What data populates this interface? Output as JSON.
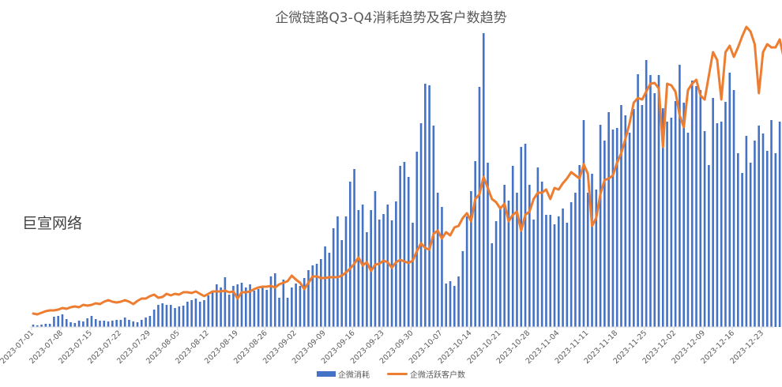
{
  "title": "企微链路Q3-Q4消耗趋势及客户数趋势",
  "watermark": "巨宣网络",
  "legend": {
    "bar_label": "企微消耗",
    "line_label": "企微活跃客户数"
  },
  "colors": {
    "bar": "#4472c4",
    "line": "#ed7d31",
    "axis": "#d9d9d9",
    "text": "#595959"
  },
  "chart_data": {
    "type": "bar+line",
    "title": "企微链路Q3-Q4消耗趋势及客户数趋势",
    "xlabel": "",
    "ylabel": "",
    "start_date": "2023-07-01",
    "x_tick_labels": [
      "2023-07-01",
      "2023-07-08",
      "2023-07-15",
      "2023-07-22",
      "2023-07-29",
      "2023-08-05",
      "2023-08-12",
      "2023-08-19",
      "2023-08-26",
      "2023-09-02",
      "2023-09-09",
      "2023-09-16",
      "2023-09-23",
      "2023-09-30",
      "2023-10-07",
      "2023-10-14",
      "2023-10-21",
      "2023-10-28",
      "2023-11-04",
      "2023-11-11",
      "2023-11-18",
      "2023-11-25",
      "2023-12-02",
      "2023-12-09",
      "2023-12-16",
      "2023-12-23"
    ],
    "legend_position": "bottom",
    "grid": false,
    "note": "No y-axis shown; values are relative heights (px above baseline, scale 0-372)",
    "series": [
      {
        "name": "企微消耗",
        "type": "bar",
        "values": [
          3,
          2,
          3,
          4,
          4,
          13,
          14,
          16,
          10,
          6,
          5,
          8,
          7,
          11,
          14,
          10,
          8,
          8,
          7,
          8,
          9,
          9,
          12,
          9,
          7,
          6,
          9,
          12,
          14,
          22,
          28,
          30,
          28,
          28,
          24,
          26,
          27,
          32,
          34,
          36,
          32,
          34,
          40,
          46,
          54,
          50,
          63,
          41,
          52,
          54,
          56,
          50,
          54,
          46,
          48,
          52,
          47,
          64,
          68,
          37,
          60,
          37,
          50,
          55,
          52,
          62,
          72,
          78,
          80,
          86,
          102,
          94,
          125,
          140,
          110,
          140,
          184,
          200,
          148,
          155,
          120,
          148,
          172,
          136,
          143,
          155,
          135,
          159,
          204,
          209,
          190,
          132,
          222,
          258,
          308,
          306,
          255,
          170,
          152,
          55,
          58,
          52,
          64,
          96,
          140,
          172,
          210,
          304,
          404,
          208,
          106,
          134,
          150,
          180,
          160,
          204,
          170,
          228,
          232,
          180,
          136,
          202,
          184,
          142,
          142,
          130,
          140,
          150,
          132,
          158,
          170,
          205,
          262,
          170,
          194,
          174,
          256,
          236,
          272,
          250,
          252,
          281,
          268,
          246,
          276,
          320,
          281,
          338,
          319,
          296,
          319,
          277,
          260,
          265,
          286,
          332,
          284,
          246,
          312,
          305,
          300,
          248,
          205,
          290,
          258,
          260,
          285,
          322,
          300,
          220,
          195,
          242,
          208,
          236,
          255,
          245,
          223,
          262,
          220,
          260,
          240,
          247,
          237,
          253,
          262,
          258,
          232,
          270
        ]
      },
      {
        "name": "企微活跃客户数",
        "type": "line",
        "values": [
          9,
          8,
          10,
          12,
          13,
          13,
          14,
          16,
          15,
          17,
          18,
          17,
          20,
          19,
          20,
          22,
          21,
          24,
          26,
          24,
          23,
          24,
          26,
          24,
          21,
          25,
          28,
          28,
          31,
          33,
          29,
          30,
          34,
          32,
          34,
          33,
          36,
          36,
          35,
          37,
          34,
          31,
          34,
          37,
          37,
          37,
          38,
          36,
          37,
          28,
          36,
          36,
          37,
          40,
          42,
          43,
          43,
          44,
          42,
          46,
          48,
          50,
          57,
          52,
          48,
          40,
          48,
          56,
          56,
          54,
          54,
          55,
          55,
          55,
          57,
          61,
          66,
          72,
          80,
          70,
          74,
          63,
          71,
          72,
          76,
          74,
          67,
          74,
          77,
          75,
          73,
          76,
          88,
          98,
          92,
          90,
          110,
          114,
          104,
          112,
          108,
          118,
          120,
          130,
          136,
          126,
          154,
          160,
          182,
          168,
          154,
          150,
          142,
          148,
          126,
          134,
          138,
          114,
          134,
          138,
          154,
          162,
          162,
          166,
          154,
          168,
          166,
          174,
          180,
          188,
          184,
          180,
          198,
          186,
          120,
          130,
          160,
          178,
          180,
          184,
          200,
          212,
          230,
          250,
          276,
          282,
          280,
          290,
          300,
          301,
          294,
          220,
          300,
          298,
          290,
          260,
          245,
          292,
          300,
          305,
          285,
          280,
          310,
          340,
          330,
          280,
          340,
          348,
          334,
          346,
          360,
          372,
          366,
          350,
          288,
          340,
          350,
          346,
          346,
          356,
          332,
          330,
          346,
          345,
          335,
          326,
          334,
          320,
          300,
          298
        ]
      }
    ]
  }
}
